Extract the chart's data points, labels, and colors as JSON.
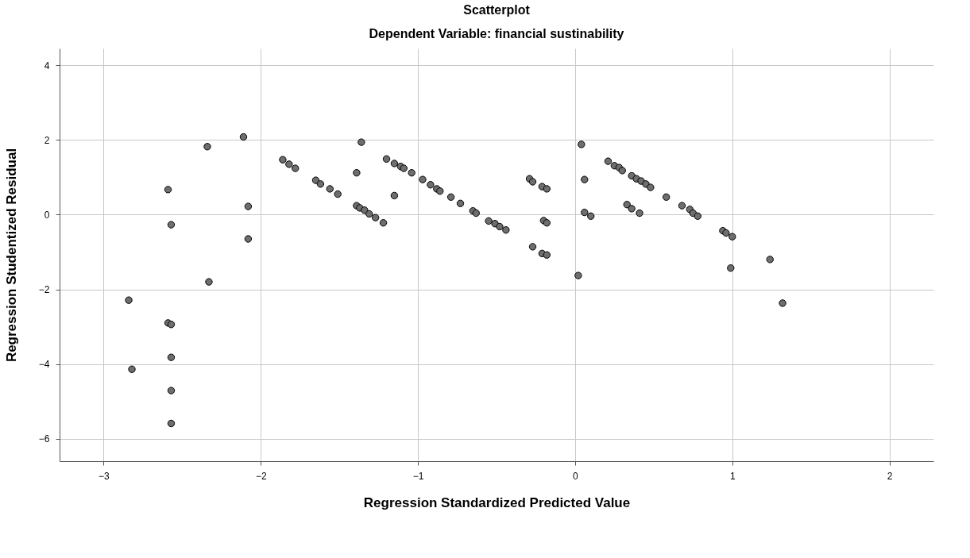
{
  "chart_data": {
    "type": "scatter",
    "title": "Scatterplot",
    "subtitle": "Dependent Variable: financial sustinability",
    "xlabel": "Regression Standardized Predicted Value",
    "ylabel": "Regression Studentized Residual",
    "xlim": [
      -3.28,
      2.28
    ],
    "ylim": [
      -6.6,
      4.45
    ],
    "xticks": [
      -3,
      -2,
      -1,
      0,
      1,
      2
    ],
    "yticks": [
      -6,
      -4,
      -2,
      0,
      2,
      4
    ],
    "grid": true,
    "marker": "circle",
    "legend": false,
    "series": [
      {
        "color": "#6e6e6e",
        "x": [
          -2.11,
          -2.34,
          -2.59,
          -2.08,
          -2.57,
          -2.08,
          -2.33,
          -2.84,
          -2.59,
          -2.57,
          -2.57,
          -2.82,
          -2.57,
          -2.57,
          -1.86,
          -1.82,
          -1.78,
          -1.65,
          -1.62,
          -1.56,
          -1.51,
          -1.36,
          -1.39,
          -1.39,
          -1.37,
          -1.34,
          -1.31,
          -1.27,
          -1.22,
          -1.2,
          -1.15,
          -1.11,
          -1.15,
          -1.09,
          -1.04,
          -0.97,
          -0.92,
          -0.88,
          -0.86,
          -0.79,
          -0.73,
          -0.65,
          -0.63,
          -0.55,
          -0.51,
          -0.48,
          -0.44,
          -0.29,
          -0.27,
          -0.21,
          -0.18,
          -0.2,
          -0.18,
          -0.27,
          -0.21,
          -0.18,
          0.04,
          0.06,
          0.06,
          0.1,
          0.02,
          0.21,
          0.25,
          0.28,
          0.3,
          0.36,
          0.39,
          0.42,
          0.45,
          0.48,
          0.33,
          0.36,
          0.41,
          0.58,
          0.68,
          0.73,
          0.75,
          0.78,
          0.94,
          0.96,
          1.0,
          0.99,
          1.24,
          1.32
        ],
        "values": [
          2.08,
          1.82,
          0.67,
          0.22,
          -0.27,
          -0.65,
          -1.8,
          -2.29,
          -2.9,
          -2.94,
          -3.82,
          -4.14,
          -4.71,
          -5.59,
          1.47,
          1.35,
          1.24,
          0.92,
          0.82,
          0.69,
          0.55,
          1.94,
          1.12,
          0.24,
          0.18,
          0.12,
          0.02,
          -0.08,
          -0.22,
          1.49,
          1.37,
          1.29,
          0.51,
          1.24,
          1.12,
          0.94,
          0.8,
          0.69,
          0.63,
          0.47,
          0.3,
          0.1,
          0.04,
          -0.17,
          -0.24,
          -0.32,
          -0.41,
          0.96,
          0.88,
          0.75,
          0.69,
          -0.16,
          -0.22,
          -0.86,
          -1.04,
          -1.08,
          1.88,
          0.94,
          0.06,
          -0.04,
          -1.63,
          1.43,
          1.31,
          1.26,
          1.18,
          1.04,
          0.96,
          0.9,
          0.82,
          0.73,
          0.27,
          0.16,
          0.04,
          0.47,
          0.24,
          0.14,
          0.04,
          -0.04,
          -0.43,
          -0.49,
          -0.59,
          -1.43,
          -1.2,
          -2.37
        ]
      }
    ]
  }
}
